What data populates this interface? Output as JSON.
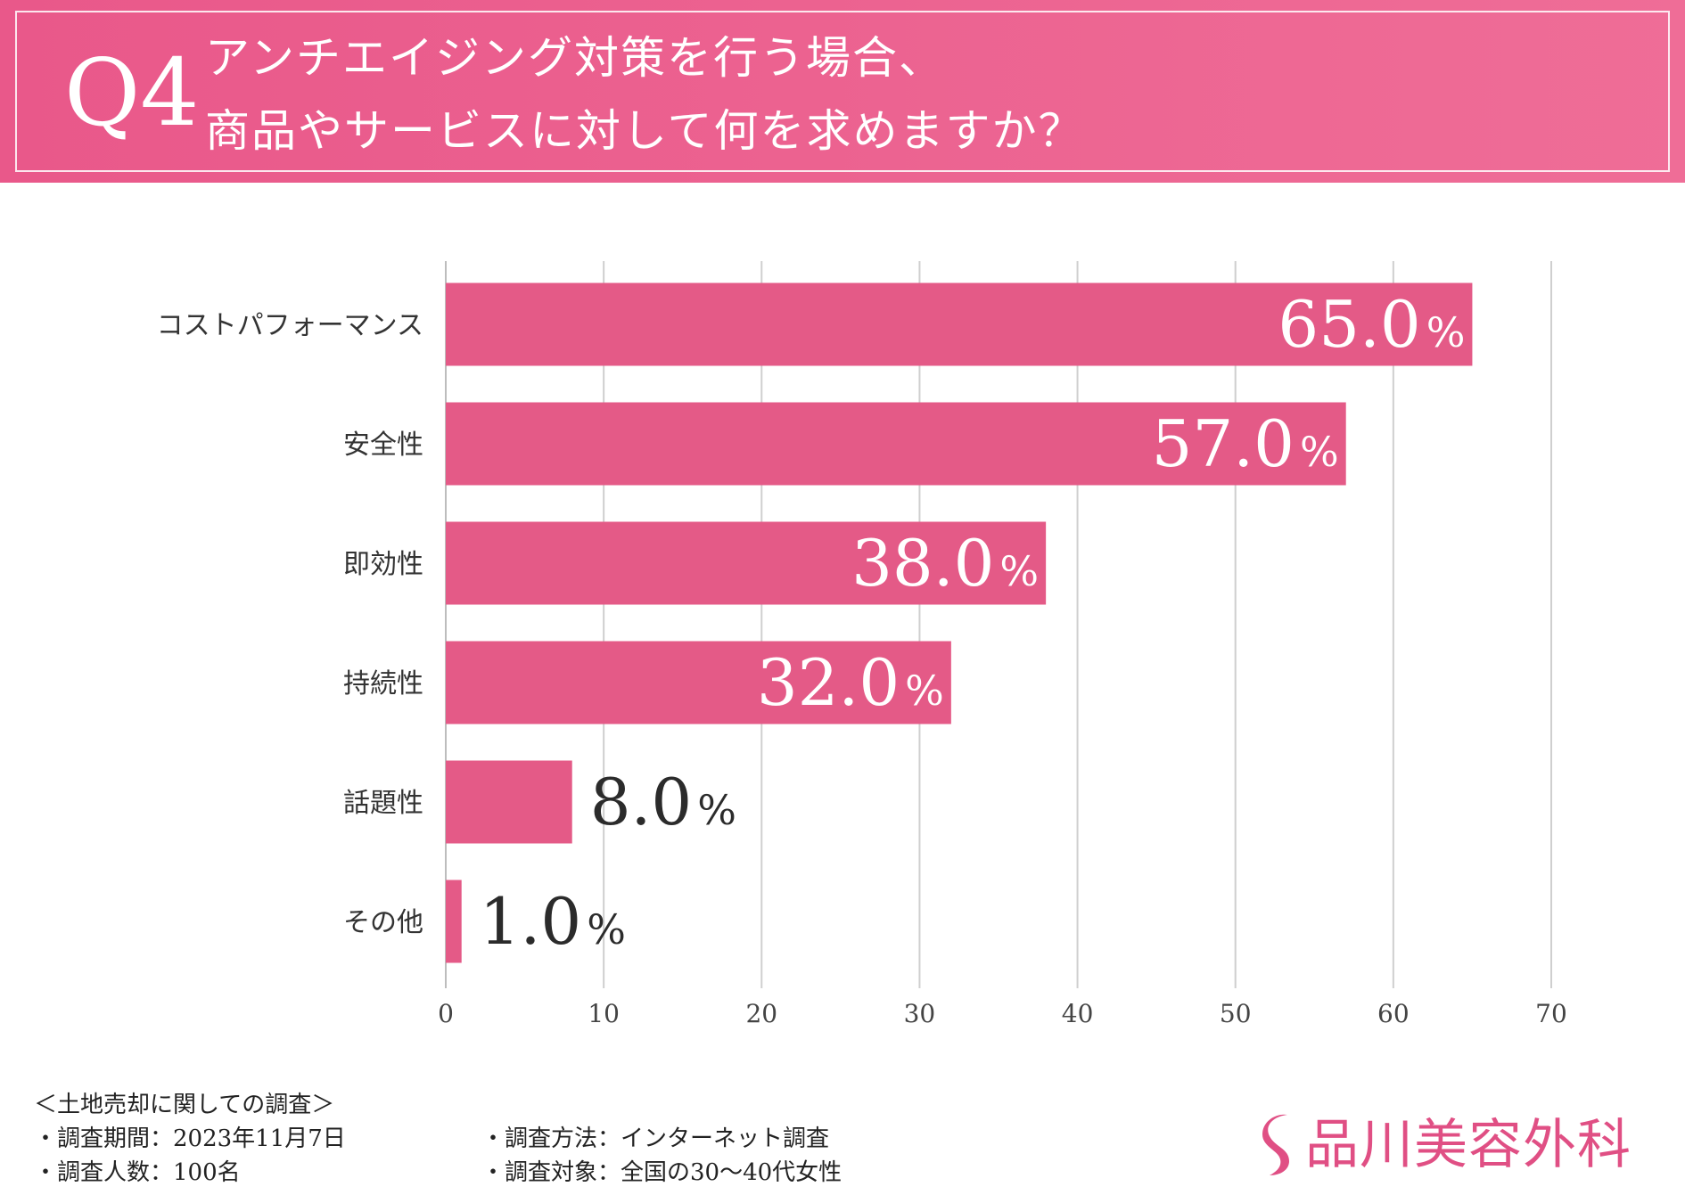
{
  "header": {
    "q_number": "Q4",
    "title_line1": "アンチエイジング対策を行う場合、",
    "title_line2": "商品やサービスに対して何を求めますか？"
  },
  "colors": {
    "header_bg": "#eb5f8f",
    "bar": "#e45a87",
    "gridline": "#cfcfcf",
    "axis_text": "#444444",
    "inside_label": "#ffffff",
    "outside_label": "#2b2b2b",
    "brand": "#e04f84"
  },
  "chart_data": {
    "type": "bar",
    "orientation": "horizontal",
    "categories": [
      "コストパフォーマンス",
      "安全性",
      "即効性",
      "持続性",
      "話題性",
      "その他"
    ],
    "values": [
      65.0,
      57.0,
      38.0,
      32.0,
      8.0,
      1.0
    ],
    "value_labels": [
      "65.0",
      "57.0",
      "38.0",
      "32.0",
      "8.0",
      "1.0"
    ],
    "unit": "%",
    "xlim": [
      0,
      70
    ],
    "xticks": [
      0,
      10,
      20,
      30,
      40,
      50,
      60,
      70
    ],
    "grid": true,
    "title": "アンチエイジング対策を行う場合、商品やサービスに対して何を求めますか？",
    "xlabel": "",
    "ylabel": ""
  },
  "footer": {
    "heading": "＜土地売却に関しての調査＞",
    "period": "・調査期間：2023年11月7日",
    "respondents": "・調査人数：100名",
    "method": "・調査方法：インターネット調査",
    "target": "・調査対象：全国の30〜40代女性",
    "brand_name": "品川美容外科",
    "brand_icon": "s-logo-icon"
  }
}
